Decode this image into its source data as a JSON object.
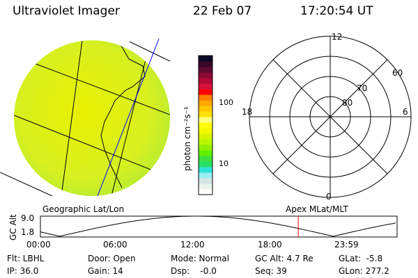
{
  "header": {
    "title": "Ultraviolet Imager",
    "date": "22 Feb 07",
    "time": "17:20:54 UT"
  },
  "colorbar": {
    "label": "photon cm⁻²s⁻¹",
    "ticks": [
      "100",
      "10"
    ],
    "colors": [
      "#ffffff",
      "#e8f4ec",
      "#d4e4e2",
      "#98eef2",
      "#2ee0d8",
      "#28e068",
      "#40e040",
      "#60f000",
      "#90f000",
      "#b8f800",
      "#d8f400",
      "#f0f800",
      "#ffff00",
      "#ffff80",
      "#ffe000",
      "#ffc800",
      "#ffa800",
      "#ff8000",
      "#ff0000",
      "#d8103a",
      "#b00a38",
      "#8a0a34",
      "#5a0a30",
      "#3a0828",
      "#0a0a28"
    ]
  },
  "polar": {
    "mlt_labels": {
      "top": "12",
      "left": "18",
      "right": "6",
      "bottom": "0"
    },
    "lat_labels": [
      "60",
      "70",
      "80"
    ]
  },
  "alt_plot": {
    "ylabel": "GC Alt",
    "yticks": [
      "9.0",
      "1.8"
    ],
    "xticks": [
      "00:00",
      "06:00",
      "12:00",
      "18:00",
      "23:59"
    ],
    "left_title": "Geographic Lat/Lon",
    "right_title": "Apex MLat/MLT",
    "current_time_hours": 17.35
  },
  "status": {
    "flt": "Flt: LBHL",
    "ip": "IP: 36.0",
    "door": "Door: Open",
    "gain": "Gain: 14",
    "mode": "Mode: Normal",
    "dsp": "Dsp:    -0.0",
    "gcalt": "GC Alt: 4.7 Re",
    "seq": "Seq: 39",
    "glat": "GLat:  -5.8",
    "glon": "GLon: 277.2"
  },
  "colors": {
    "marker": "#ff0000",
    "track": "#0000ff"
  }
}
